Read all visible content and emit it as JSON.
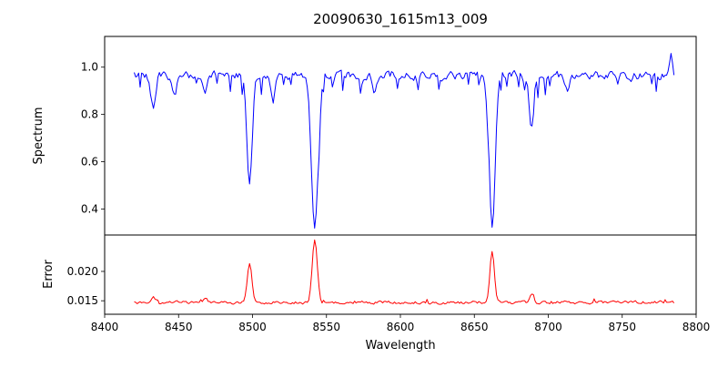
{
  "title": "20090630_1615m13_009",
  "x_axis": {
    "label": "Wavelength",
    "lim": [
      8400,
      8800
    ],
    "ticks": [
      8400,
      8450,
      8500,
      8550,
      8600,
      8650,
      8700,
      8750,
      8800
    ],
    "tick_labels": [
      "8400",
      "8450",
      "8500",
      "8550",
      "8600",
      "8650",
      "8700",
      "8750",
      "8800"
    ]
  },
  "chart_data": [
    {
      "type": "line",
      "name": "spectrum",
      "ylabel": "Spectrum",
      "color": "#0000ff",
      "x_range": [
        8420,
        8785
      ],
      "x_step": 1,
      "ylim": [
        0.29,
        1.13
      ],
      "yticks": [
        0.4,
        0.6,
        0.8,
        1.0
      ],
      "ytick_labels": [
        "0.4",
        "0.6",
        "0.8",
        "1.0"
      ],
      "continuum": 0.965,
      "noise_amplitude": 0.03,
      "noise_seed": 20090630,
      "absorption_lines": [
        {
          "center": 8433,
          "depth": 0.16,
          "width": 1.6
        },
        {
          "center": 8447,
          "depth": 0.1,
          "width": 1.4
        },
        {
          "center": 8468,
          "depth": 0.09,
          "width": 1.4
        },
        {
          "center": 8498.0,
          "depth": 0.475,
          "width": 1.8
        },
        {
          "center": 8514,
          "depth": 0.1,
          "width": 1.3
        },
        {
          "center": 8542.1,
          "depth": 0.635,
          "width": 2.3
        },
        {
          "center": 8582,
          "depth": 0.08,
          "width": 1.3
        },
        {
          "center": 8662.1,
          "depth": 0.625,
          "width": 2.0
        },
        {
          "center": 8688.6,
          "depth": 0.22,
          "width": 1.5
        },
        {
          "center": 8713,
          "depth": 0.07,
          "width": 1.2
        },
        {
          "center": 8783,
          "depth": -0.1,
          "width": 1.0
        }
      ]
    },
    {
      "type": "line",
      "name": "error",
      "ylabel": "Error",
      "color": "#ff0000",
      "x_range": [
        8420,
        8785
      ],
      "x_step": 1,
      "ylim": [
        0.0127,
        0.0262
      ],
      "yticks": [
        0.015,
        0.02
      ],
      "ytick_labels": [
        "0.015",
        "0.020"
      ],
      "baseline": 0.0147,
      "noise_amplitude": 0.00045,
      "noise_seed": 1615,
      "peaks": [
        {
          "center": 8433,
          "height": 0.001,
          "width": 1.4
        },
        {
          "center": 8468,
          "height": 0.0006,
          "width": 1.3
        },
        {
          "center": 8498.0,
          "height": 0.0068,
          "width": 1.5
        },
        {
          "center": 8542.1,
          "height": 0.0108,
          "width": 1.7
        },
        {
          "center": 8662.1,
          "height": 0.0084,
          "width": 1.5
        },
        {
          "center": 8688.6,
          "height": 0.0013,
          "width": 1.3
        }
      ]
    }
  ]
}
